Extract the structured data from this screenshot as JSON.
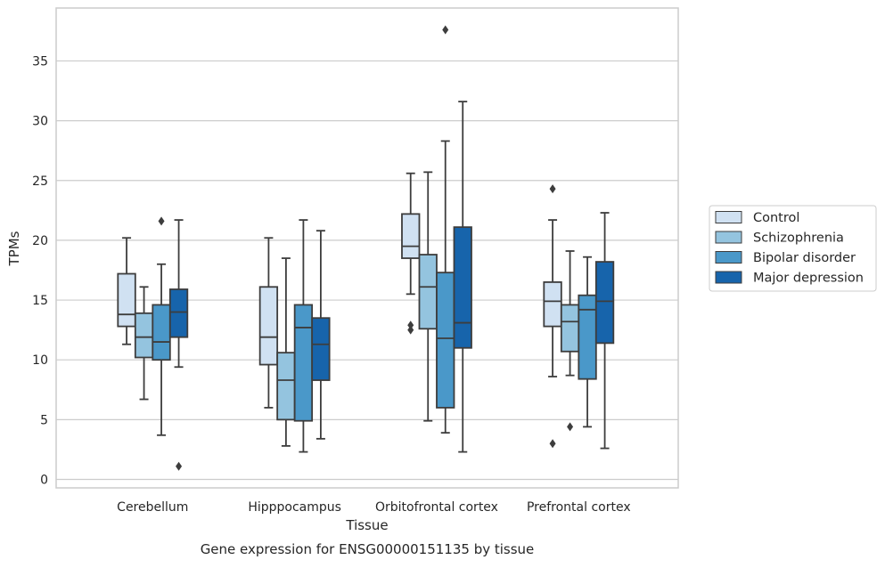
{
  "chart_data": {
    "type": "box",
    "title": "",
    "caption": "Gene expression for ENSG00000151135 by tissue",
    "xlabel": "Tissue",
    "ylabel": "TPMs",
    "ylim": [
      -0.6,
      39.6
    ],
    "yticks": [
      0,
      5,
      10,
      15,
      20,
      25,
      30,
      35
    ],
    "grid": "horizontal",
    "legend_position": "right-outside",
    "categories": [
      "Cerebellum",
      "Hipppocampus",
      "Orbitofrontal cortex",
      "Prefrontal cortex"
    ],
    "series": [
      {
        "name": "Control",
        "color": "#d0e1f2",
        "boxes": [
          {
            "whisker_low": 11.3,
            "q1": 12.8,
            "median": 13.8,
            "q3": 17.2,
            "whisker_high": 20.2,
            "outliers": []
          },
          {
            "whisker_low": 6.0,
            "q1": 9.6,
            "median": 11.9,
            "q3": 16.1,
            "whisker_high": 20.2,
            "outliers": []
          },
          {
            "whisker_low": 15.5,
            "q1": 18.5,
            "median": 19.5,
            "q3": 22.2,
            "whisker_high": 25.6,
            "outliers": [
              12.9,
              12.5
            ]
          },
          {
            "whisker_low": 8.6,
            "q1": 12.8,
            "median": 14.9,
            "q3": 16.5,
            "whisker_high": 21.7,
            "outliers": [
              24.3,
              3.0
            ]
          }
        ]
      },
      {
        "name": "Schizophrenia",
        "color": "#94c4df",
        "boxes": [
          {
            "whisker_low": 6.7,
            "q1": 10.2,
            "median": 11.9,
            "q3": 13.9,
            "whisker_high": 16.1,
            "outliers": []
          },
          {
            "whisker_low": 2.8,
            "q1": 5.0,
            "median": 8.3,
            "q3": 10.6,
            "whisker_high": 18.5,
            "outliers": []
          },
          {
            "whisker_low": 4.9,
            "q1": 12.6,
            "median": 16.1,
            "q3": 18.8,
            "whisker_high": 25.7,
            "outliers": []
          },
          {
            "whisker_low": 8.7,
            "q1": 10.7,
            "median": 13.2,
            "q3": 14.6,
            "whisker_high": 19.1,
            "outliers": [
              4.4
            ]
          }
        ]
      },
      {
        "name": "Bipolar disorder",
        "color": "#4a98c9",
        "boxes": [
          {
            "whisker_low": 3.7,
            "q1": 10.0,
            "median": 11.5,
            "q3": 14.6,
            "whisker_high": 18.0,
            "outliers": [
              21.6
            ]
          },
          {
            "whisker_low": 2.3,
            "q1": 4.9,
            "median": 12.7,
            "q3": 14.6,
            "whisker_high": 21.7,
            "outliers": []
          },
          {
            "whisker_low": 3.9,
            "q1": 6.0,
            "median": 11.8,
            "q3": 17.3,
            "whisker_high": 28.3,
            "outliers": [
              37.6
            ]
          },
          {
            "whisker_low": 4.4,
            "q1": 8.4,
            "median": 14.2,
            "q3": 15.4,
            "whisker_high": 18.6,
            "outliers": []
          }
        ]
      },
      {
        "name": "Major depression",
        "color": "#1764ab",
        "boxes": [
          {
            "whisker_low": 9.4,
            "q1": 11.9,
            "median": 14.0,
            "q3": 15.9,
            "whisker_high": 21.7,
            "outliers": [
              1.1
            ]
          },
          {
            "whisker_low": 3.4,
            "q1": 8.3,
            "median": 11.3,
            "q3": 13.5,
            "whisker_high": 20.8,
            "outliers": []
          },
          {
            "whisker_low": 2.3,
            "q1": 11.0,
            "median": 13.1,
            "q3": 21.1,
            "whisker_high": 31.6,
            "outliers": []
          },
          {
            "whisker_low": 2.6,
            "q1": 11.4,
            "median": 14.9,
            "q3": 18.2,
            "whisker_high": 22.3,
            "outliers": []
          }
        ]
      }
    ]
  }
}
